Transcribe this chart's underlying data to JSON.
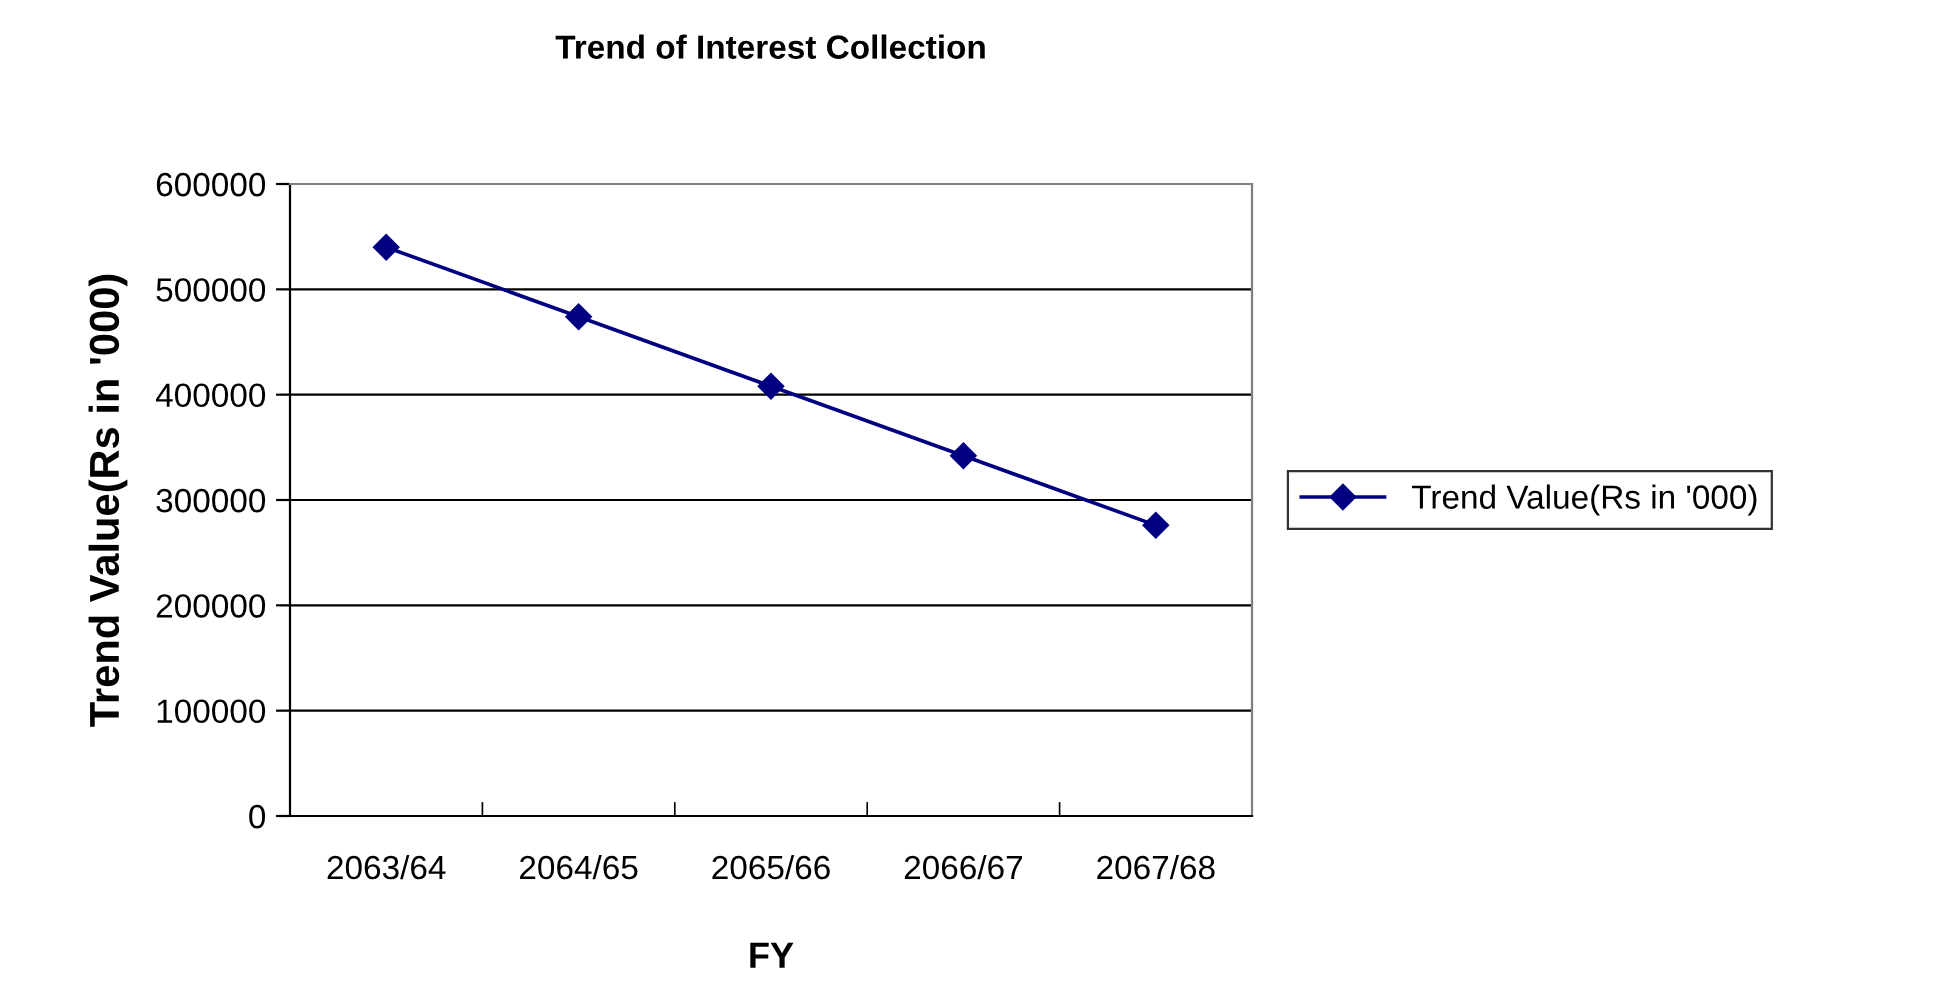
{
  "chart_data": {
    "type": "line",
    "title": "Trend of Interest Collection",
    "xlabel": "FY",
    "ylabel": "Trend Value(Rs in '000)",
    "categories": [
      "2063/64",
      "2064/65",
      "2065/66",
      "2066/67",
      "2067/68"
    ],
    "series": [
      {
        "name": "Trend Value(Rs in '000)",
        "color": "#000080",
        "values": [
          540000,
          474000,
          408000,
          342000,
          276000
        ]
      }
    ],
    "ylim": [
      0,
      600000
    ],
    "yticks": [
      0,
      100000,
      200000,
      300000,
      400000,
      500000,
      600000
    ],
    "grid": "y",
    "legend": "right",
    "marker": "diamond",
    "line_style": "solid"
  }
}
